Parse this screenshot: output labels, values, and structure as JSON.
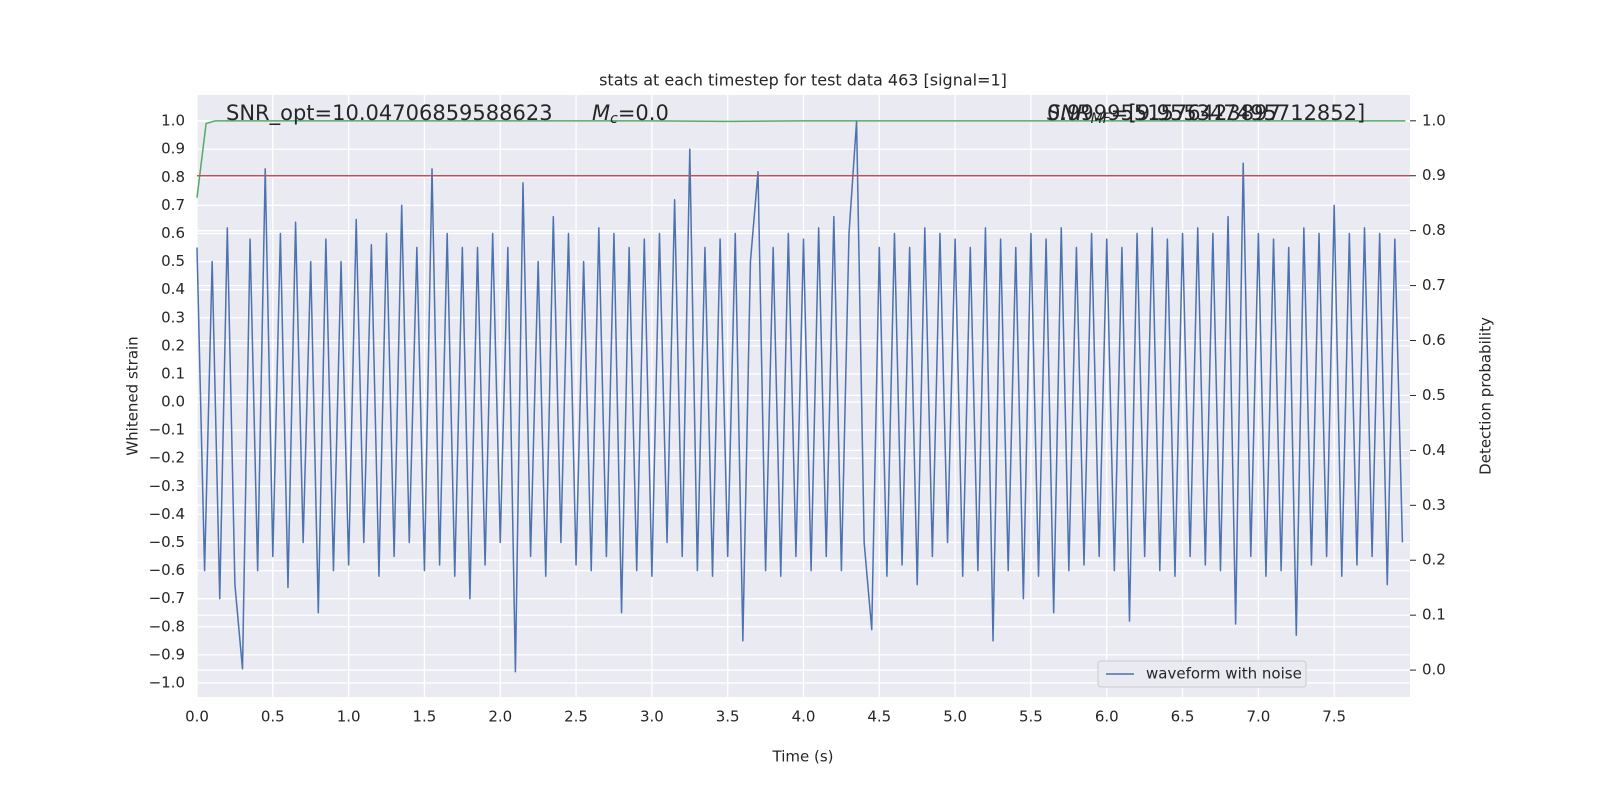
{
  "chart_data": {
    "type": "line",
    "title": "stats at each timestep for test data 463 [signal=1]",
    "xlabel": "Time (s)",
    "ylabel": "Whitened strain",
    "y2label": "Detection probability",
    "xlim": [
      0,
      8
    ],
    "ylim": [
      -1.05,
      1.093
    ],
    "y2lim": [
      -0.049,
      1.047
    ],
    "xticks": [
      {
        "value": 0,
        "label": "0.0"
      },
      0.5,
      {
        "value": 1,
        "label": "1.0"
      },
      1.5,
      {
        "value": 2,
        "label": "2.0"
      },
      2.5,
      {
        "value": 3,
        "label": "3.0"
      },
      3.5,
      {
        "value": 4,
        "label": "4.0"
      },
      4.5,
      {
        "value": 5,
        "label": "5.0"
      },
      5.5,
      {
        "value": 6,
        "label": "6.0"
      },
      6.5,
      {
        "value": 7,
        "label": "7.0"
      },
      7.5
    ],
    "yticks": [
      {
        "value": -1,
        "label": "−1.0"
      },
      {
        "value": -0.9,
        "label": "−0.9"
      },
      {
        "value": -0.8,
        "label": "−0.8"
      },
      {
        "value": -0.7,
        "label": "−0.7"
      },
      {
        "value": -0.6,
        "label": "−0.6"
      },
      {
        "value": -0.5,
        "label": "−0.5"
      },
      {
        "value": -0.4,
        "label": "−0.4"
      },
      {
        "value": -0.3,
        "label": "−0.3"
      },
      {
        "value": -0.2,
        "label": "−0.2"
      },
      {
        "value": -0.1,
        "label": "−0.1"
      },
      {
        "value": 0,
        "label": "0.0"
      },
      0.1,
      0.2,
      0.3,
      0.4,
      0.5,
      0.6,
      0.7,
      0.8,
      0.9,
      {
        "value": 1,
        "label": "1.0"
      }
    ],
    "y2ticks": [
      {
        "value": 0,
        "label": "0.0"
      },
      0.1,
      0.2,
      0.3,
      0.4,
      0.5,
      0.6,
      0.7,
      0.8,
      0.9,
      {
        "value": 1,
        "label": "1.0"
      }
    ],
    "grid": true,
    "legend": "lower right",
    "annotations": [
      "SNR_opt=10.04706859588623",
      {
        "symbol": "M",
        "sub": "c",
        "rest": "=0.0"
      },
      {
        "symbol": "SNR",
        "sub": "MF",
        "rest": "=[9.955347495712852]"
      },
      "0.9999551576423897"
    ],
    "hlines": [
      {
        "value": 0.9,
        "axis": "y2",
        "color": "#c44e52"
      }
    ],
    "series": [
      {
        "name": "waveform with noise",
        "color": "#4c72b0",
        "x": [
          0,
          0.05,
          0.1,
          0.15,
          0.2,
          0.25,
          0.3,
          0.35,
          0.4,
          0.45,
          0.5,
          0.55,
          0.6,
          0.65,
          0.7,
          0.75,
          0.8,
          0.85,
          0.9,
          0.95,
          1,
          1.05,
          1.1,
          1.15,
          1.2,
          1.25,
          1.3,
          1.35,
          1.4,
          1.45,
          1.5,
          1.55,
          1.6,
          1.65,
          1.7,
          1.75,
          1.8,
          1.85,
          1.9,
          1.95,
          2,
          2.05,
          2.1,
          2.15,
          2.2,
          2.25,
          2.3,
          2.35,
          2.4,
          2.45,
          2.5,
          2.55,
          2.6,
          2.65,
          2.7,
          2.75,
          2.8,
          2.85,
          2.9,
          2.95,
          3,
          3.05,
          3.1,
          3.15,
          3.2,
          3.25,
          3.3,
          3.35,
          3.4,
          3.45,
          3.5,
          3.55,
          3.6,
          3.65,
          3.7,
          3.75,
          3.8,
          3.85,
          3.9,
          3.95,
          4,
          4.05,
          4.1,
          4.15,
          4.2,
          4.25,
          4.3,
          4.35,
          4.4,
          4.45,
          4.5,
          4.55,
          4.6,
          4.65,
          4.7,
          4.75,
          4.8,
          4.85,
          4.9,
          4.95,
          5,
          5.05,
          5.1,
          5.15,
          5.2,
          5.25,
          5.3,
          5.35,
          5.4,
          5.45,
          5.5,
          5.55,
          5.6,
          5.65,
          5.7,
          5.75,
          5.8,
          5.85,
          5.9,
          5.95,
          6,
          6.05,
          6.1,
          6.15,
          6.2,
          6.25,
          6.3,
          6.35,
          6.4,
          6.45,
          6.5,
          6.55,
          6.6,
          6.65,
          6.7,
          6.75,
          6.8,
          6.85,
          6.9,
          6.95,
          7,
          7.05,
          7.1,
          7.15,
          7.2,
          7.25,
          7.3,
          7.35,
          7.4,
          7.45,
          7.5,
          7.55,
          7.6,
          7.65,
          7.7,
          7.75,
          7.8,
          7.85,
          7.9,
          7.95
        ],
        "values": [
          0.55,
          -0.6,
          0.5,
          -0.7,
          0.62,
          -0.65,
          -0.95,
          0.58,
          -0.6,
          0.83,
          -0.55,
          0.6,
          -0.66,
          0.64,
          -0.5,
          0.5,
          -0.75,
          0.58,
          -0.6,
          0.5,
          -0.58,
          0.65,
          -0.5,
          0.56,
          -0.62,
          0.6,
          -0.55,
          0.7,
          -0.5,
          0.55,
          -0.6,
          0.83,
          -0.58,
          0.6,
          -0.62,
          0.55,
          -0.7,
          0.55,
          -0.58,
          0.6,
          -0.5,
          0.55,
          -0.96,
          0.78,
          -0.55,
          0.5,
          -0.62,
          0.66,
          -0.5,
          0.6,
          -0.58,
          0.5,
          -0.6,
          0.62,
          -0.55,
          0.6,
          -0.75,
          0.55,
          -0.6,
          0.58,
          -0.62,
          0.6,
          -0.5,
          0.72,
          -0.55,
          0.9,
          -0.6,
          0.55,
          -0.62,
          0.58,
          -0.55,
          0.6,
          -0.85,
          0.5,
          0.82,
          -0.6,
          0.55,
          -0.62,
          0.6,
          -0.55,
          0.58,
          -0.6,
          0.62,
          -0.55,
          0.66,
          -0.6,
          0.6,
          1.0,
          -0.5,
          -0.81,
          0.55,
          -0.62,
          0.6,
          -0.58,
          0.55,
          -0.65,
          0.62,
          -0.55,
          0.6,
          -0.5,
          0.58,
          -0.62,
          0.55,
          -0.6,
          0.62,
          -0.85,
          0.58,
          -0.6,
          0.55,
          -0.7,
          0.6,
          -0.62,
          0.58,
          -0.75,
          0.62,
          -0.6,
          0.55,
          -0.58,
          0.6,
          -0.55,
          0.58,
          -0.6,
          0.55,
          -0.78,
          0.6,
          -0.55,
          0.62,
          -0.6,
          0.58,
          -0.62,
          0.6,
          -0.55,
          0.62,
          -0.58,
          0.6,
          -0.6,
          0.66,
          -0.79,
          0.85,
          -0.55,
          0.6,
          -0.62,
          0.58,
          -0.6,
          0.55,
          -0.83,
          0.62,
          -0.58,
          0.6,
          -0.55,
          0.7,
          -0.62,
          0.6,
          -0.58,
          0.62,
          -0.55,
          0.6,
          -0.65,
          0.58,
          -0.5
        ]
      },
      {
        "color": "#55a868",
        "axis": "y2",
        "x": [
          0,
          0.06,
          0.12,
          1,
          2,
          3,
          3.5,
          4,
          5,
          6,
          7,
          7.97
        ],
        "values": [
          0.86,
          0.995,
          1.0,
          1.0,
          1.0,
          1.0,
          0.999,
          1.0,
          1.0,
          1.0,
          1.0,
          1.0
        ]
      }
    ]
  }
}
